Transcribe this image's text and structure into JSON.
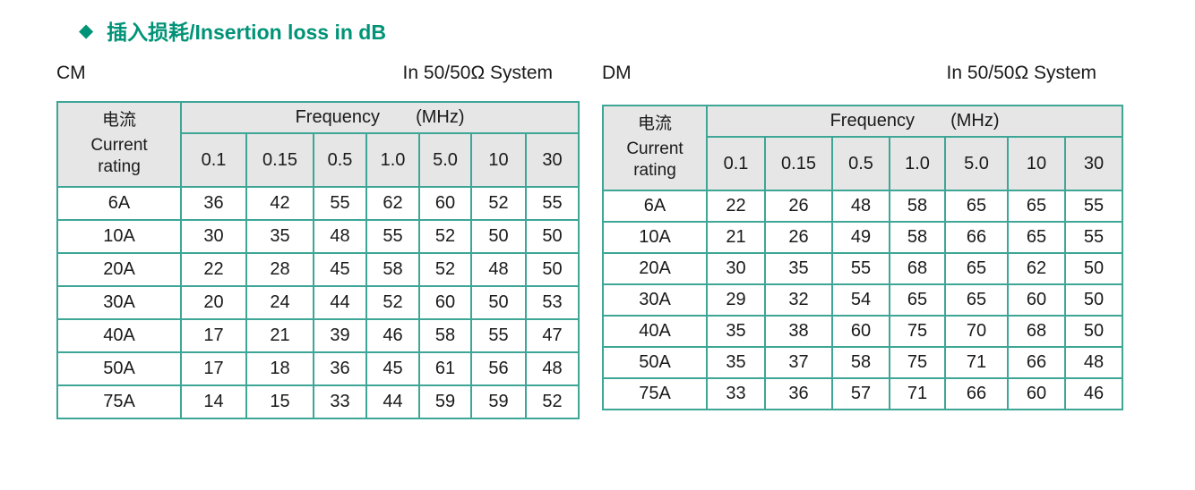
{
  "title": {
    "bullet": "◆",
    "text": "插入损耗/Insertion loss in dB"
  },
  "colors": {
    "accent": "#009377",
    "table_border": "#3EA696",
    "header_bg": "#E6E6E6"
  },
  "tables": [
    {
      "mode_label": "CM",
      "system_label": "In 50/50Ω System",
      "header": {
        "current_zh": "电流",
        "current_en": "Current rating",
        "frequency_label": "Frequency",
        "frequency_unit": "(MHz)"
      },
      "frequencies": [
        "0.1",
        "0.15",
        "0.5",
        "1.0",
        "5.0",
        "10",
        "30"
      ],
      "rows": [
        {
          "rating": "6A",
          "values": [
            "36",
            "42",
            "55",
            "62",
            "60",
            "52",
            "55"
          ]
        },
        {
          "rating": "10A",
          "values": [
            "30",
            "35",
            "48",
            "55",
            "52",
            "50",
            "50"
          ]
        },
        {
          "rating": "20A",
          "values": [
            "22",
            "28",
            "45",
            "58",
            "52",
            "48",
            "50"
          ]
        },
        {
          "rating": "30A",
          "values": [
            "20",
            "24",
            "44",
            "52",
            "60",
            "50",
            "53"
          ]
        },
        {
          "rating": "40A",
          "values": [
            "17",
            "21",
            "39",
            "46",
            "58",
            "55",
            "47"
          ]
        },
        {
          "rating": "50A",
          "values": [
            "17",
            "18",
            "36",
            "45",
            "61",
            "56",
            "48"
          ]
        },
        {
          "rating": "75A",
          "values": [
            "14",
            "15",
            "33",
            "44",
            "59",
            "59",
            "52"
          ]
        }
      ]
    },
    {
      "mode_label": "DM",
      "system_label": "In 50/50Ω System",
      "header": {
        "current_zh": "电流",
        "current_en": "Current rating",
        "frequency_label": "Frequency",
        "frequency_unit": "(MHz)"
      },
      "frequencies": [
        "0.1",
        "0.15",
        "0.5",
        "1.0",
        "5.0",
        "10",
        "30"
      ],
      "rows": [
        {
          "rating": "6A",
          "values": [
            "22",
            "26",
            "48",
            "58",
            "65",
            "65",
            "55"
          ]
        },
        {
          "rating": "10A",
          "values": [
            "21",
            "26",
            "49",
            "58",
            "66",
            "65",
            "55"
          ]
        },
        {
          "rating": "20A",
          "values": [
            "30",
            "35",
            "55",
            "68",
            "65",
            "62",
            "50"
          ]
        },
        {
          "rating": "30A",
          "values": [
            "29",
            "32",
            "54",
            "65",
            "65",
            "60",
            "50"
          ]
        },
        {
          "rating": "40A",
          "values": [
            "35",
            "38",
            "60",
            "75",
            "70",
            "68",
            "50"
          ]
        },
        {
          "rating": "50A",
          "values": [
            "35",
            "37",
            "58",
            "75",
            "71",
            "66",
            "48"
          ]
        },
        {
          "rating": "75A",
          "values": [
            "33",
            "36",
            "57",
            "71",
            "66",
            "60",
            "46"
          ]
        }
      ]
    }
  ]
}
